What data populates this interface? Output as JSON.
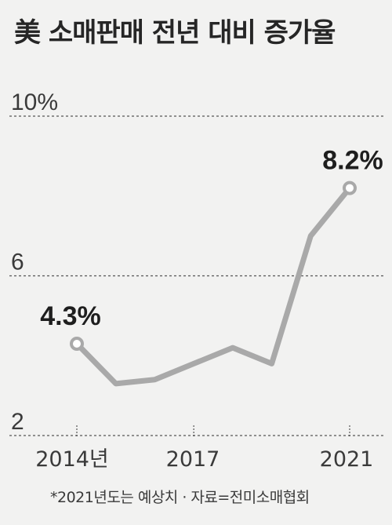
{
  "title": "美 소매판매 전년 대비 증가율",
  "note": "*2021년도는 예상치 · 자료=전미소매협회",
  "colors": {
    "line": "#a9a9a9",
    "marker_fill": "#ffffff",
    "grid": "#555555",
    "text": "#222222"
  },
  "chart_data": {
    "type": "line",
    "title": "美 소매판매 전년 대비 증가율",
    "x": [
      2014,
      2015,
      2016,
      2017,
      2018,
      2019,
      2020,
      2021
    ],
    "y": [
      4.3,
      3.3,
      3.4,
      3.8,
      4.2,
      3.8,
      7.0,
      8.2
    ],
    "ylim": [
      2,
      10
    ],
    "y_ticks": [
      {
        "value": 10,
        "label": "10%"
      },
      {
        "value": 6,
        "label": "6"
      },
      {
        "value": 2,
        "label": "2"
      }
    ],
    "x_ticks": [
      {
        "value": 2014,
        "label": "2014년"
      },
      {
        "value": 2017,
        "label": "2017"
      },
      {
        "value": 2021,
        "label": "2021"
      }
    ],
    "data_labels": [
      {
        "index": 0,
        "label": "4.3%"
      },
      {
        "index": 7,
        "label": "8.2%"
      }
    ],
    "marked_points": [
      0,
      7
    ],
    "grid": "horizontal dashed",
    "legend": "none"
  }
}
